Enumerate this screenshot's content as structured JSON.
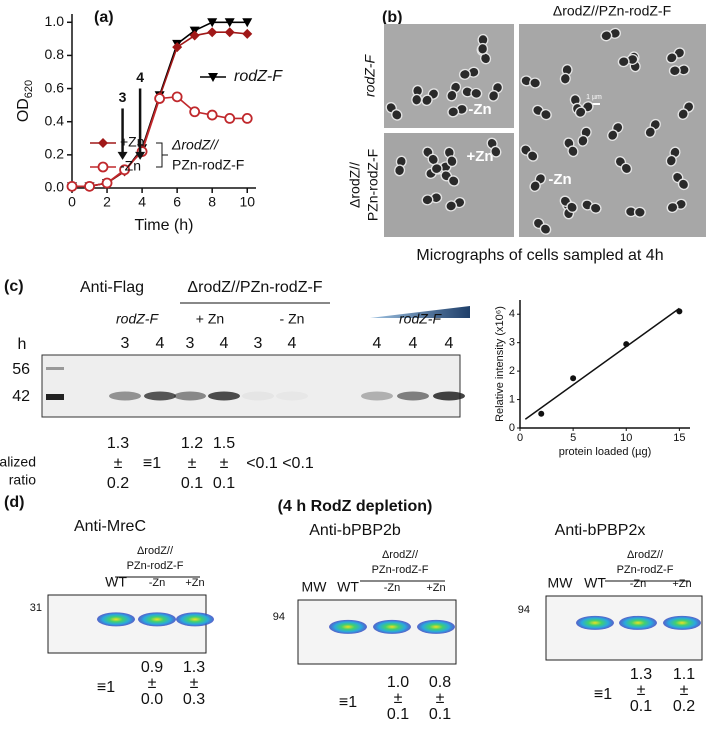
{
  "labels": {
    "a": "(a)",
    "b": "(b)",
    "c": "(c)",
    "d": "(d)"
  },
  "chart_data": [
    {
      "type": "line",
      "xlabel": "Time (h)",
      "ylabel": {
        "main": "OD",
        "sub": "620"
      },
      "x": [
        0,
        1,
        2,
        3,
        4,
        5,
        6,
        7,
        8,
        9,
        10
      ],
      "series": [
        {
          "name": "rodZ-F",
          "color": "#000000",
          "marker": "triangle-down",
          "values": [
            0.01,
            0.01,
            0.03,
            0.1,
            0.24,
            0.56,
            0.87,
            0.95,
            1.0,
            1.0,
            1.0
          ]
        },
        {
          "name": "+Zn",
          "color": "#a01818",
          "marker": "diamond",
          "values": [
            0.01,
            0.01,
            0.03,
            0.1,
            0.23,
            0.55,
            0.85,
            0.92,
            0.94,
            0.94,
            0.93
          ]
        },
        {
          "name": "-Zn",
          "color": "#c0282c",
          "marker": "open-circle",
          "values": [
            0.01,
            0.01,
            0.03,
            0.11,
            0.22,
            0.54,
            0.55,
            0.46,
            0.44,
            0.42,
            0.42
          ]
        }
      ],
      "group_label": [
        "ΔrodZ//",
        "PZn-rodZ-F"
      ],
      "arrows": [
        3,
        4
      ],
      "xlim": [
        0,
        10.5
      ],
      "xticks": [
        0,
        2,
        4,
        6,
        8,
        10
      ],
      "ylim": [
        0,
        1.05
      ],
      "yticks": [
        {
          "value": 0,
          "label": "0.0"
        },
        {
          "value": 0.2,
          "label": "0.2"
        },
        {
          "value": 0.4,
          "label": "0.4"
        },
        {
          "value": 0.6,
          "label": "0.6"
        },
        {
          "value": 0.8,
          "label": "0.8"
        },
        {
          "value": 1.0,
          "label": "1.0"
        }
      ]
    },
    {
      "type": "scatter",
      "xlabel": "protein loaded (µg)",
      "ylabel": "Relative intensity (x10⁶)",
      "x": [
        2,
        5,
        10,
        15
      ],
      "values": [
        0.5,
        1.75,
        2.95,
        4.1
      ],
      "color": "#111111",
      "trendline": true,
      "xlim": [
        0,
        16
      ],
      "xticks": [
        0,
        5,
        10,
        15
      ],
      "ylim": [
        0,
        4.5
      ],
      "yticks": [
        0,
        1,
        2,
        3,
        4
      ]
    }
  ],
  "micrographs": {
    "title": "ΔrodZ//PZn-rodZ-F",
    "row_top": "rodZ-F",
    "row_bottom": [
      "ΔrodZ//",
      "PZn-rodZ-F"
    ],
    "top_left": "-Zn",
    "bottom_left": "+Zn",
    "right": "-Zn",
    "scale": "1 µm",
    "caption": "Micrographs of cells sampled at 4h"
  },
  "blot_c": {
    "antibody": "Anti-Flag",
    "strain": "ΔrodZ//PZn-rodZ-F",
    "groups": [
      "rodZ-F",
      "+ Zn",
      "- Zn",
      "rodZ-F"
    ],
    "time_label": "h",
    "lanes": [
      3,
      4,
      3,
      4,
      3,
      4,
      4,
      4,
      4
    ],
    "mw": [
      56,
      42
    ],
    "ratio_label": [
      "Normalized",
      "ratio"
    ],
    "ratios": [
      [
        "1.3",
        "±",
        "0.2"
      ],
      [
        "≡1"
      ],
      [
        "1.2",
        "±",
        "0.1"
      ],
      [
        "1.5",
        "±",
        "0.1"
      ],
      [
        "<0.1"
      ],
      [
        "<0.1"
      ]
    ]
  },
  "blots_d": {
    "heading": "(4 h RodZ depletion)",
    "panels": [
      {
        "antibody": "Anti-MreC",
        "strain": [
          "ΔrodZ//",
          "PZn-rodZ-F"
        ],
        "lanes": [
          "WT",
          "-Zn",
          "+Zn"
        ],
        "mw": 31,
        "ratios": [
          [
            "≡1"
          ],
          [
            "0.9",
            "±",
            "0.0"
          ],
          [
            "1.3",
            "±",
            "0.3"
          ]
        ]
      },
      {
        "antibody": "Anti-bPBP2b",
        "strain": [
          "ΔrodZ//",
          "PZn-rodZ-F"
        ],
        "lanes": [
          "MW",
          "WT",
          "-Zn",
          "+Zn"
        ],
        "mw": 94,
        "ratios": [
          [
            "≡1"
          ],
          [
            "1.0",
            "±",
            "0.1"
          ],
          [
            "0.8",
            "±",
            "0.1"
          ]
        ]
      },
      {
        "antibody": "Anti-bPBP2x",
        "strain": [
          "ΔrodZ//",
          "PZn-rodZ-F"
        ],
        "lanes": [
          "MW",
          "WT",
          "-Zn",
          "+Zn"
        ],
        "mw": 94,
        "ratios": [
          [
            "≡1"
          ],
          [
            "1.3",
            "±",
            "0.1"
          ],
          [
            "1.1",
            "±",
            "0.2"
          ]
        ]
      }
    ]
  }
}
